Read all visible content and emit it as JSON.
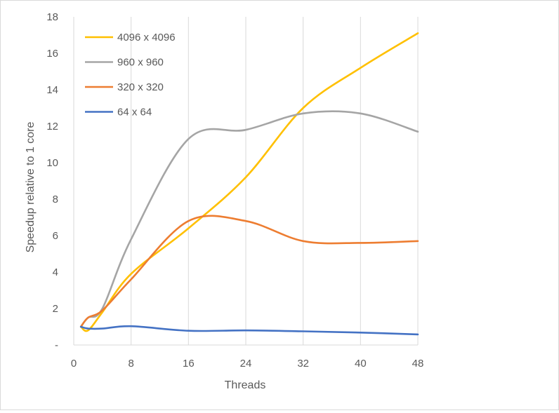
{
  "chart_data": {
    "type": "line",
    "xlabel": "Threads",
    "ylabel": "Speedup relative to 1 core",
    "xlim": [
      0,
      48
    ],
    "ylim": [
      0,
      18
    ],
    "x_ticks": [
      "0",
      "8",
      "16",
      "24",
      "32",
      "40",
      "48"
    ],
    "y_ticks": [
      "-",
      "2",
      "4",
      "6",
      "8",
      "10",
      "12",
      "14",
      "16",
      "18"
    ],
    "grid": "vertical",
    "legend_position": "top-left",
    "series": [
      {
        "name": "4096 x 4096",
        "color": "#FFC000",
        "x": [
          1,
          2,
          4,
          8,
          16,
          24,
          32,
          40,
          48
        ],
        "y": [
          1.0,
          0.8,
          1.8,
          3.9,
          6.4,
          9.2,
          13.0,
          15.2,
          17.1
        ]
      },
      {
        "name": "960 x 960",
        "color": "#A5A5A5",
        "x": [
          1,
          2,
          4,
          8,
          16,
          24,
          32,
          40,
          48
        ],
        "y": [
          1.0,
          1.5,
          2.0,
          5.8,
          11.3,
          11.8,
          12.7,
          12.7,
          11.7
        ]
      },
      {
        "name": "320  x 320",
        "color": "#ED7D31",
        "x": [
          1,
          2,
          4,
          8,
          16,
          24,
          32,
          40,
          48
        ],
        "y": [
          1.0,
          1.5,
          1.9,
          3.6,
          6.8,
          6.8,
          5.7,
          5.6,
          5.7
        ]
      },
      {
        "name": "64 x 64",
        "color": "#4472C4",
        "x": [
          1,
          2,
          4,
          8,
          16,
          24,
          32,
          40,
          48
        ],
        "y": [
          1.0,
          0.9,
          0.9,
          1.03,
          0.78,
          0.8,
          0.75,
          0.68,
          0.58
        ]
      }
    ]
  }
}
